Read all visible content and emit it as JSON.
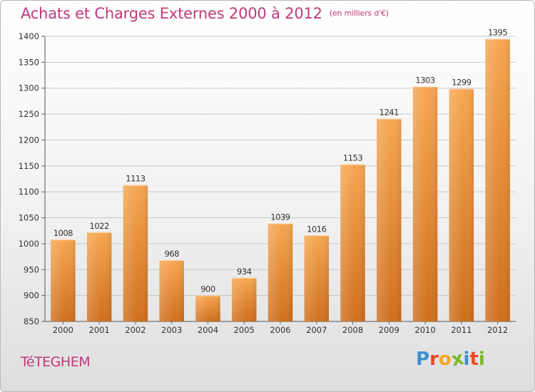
{
  "header": {
    "title": "Achats et Charges Externes 2000 à 2012",
    "subtitle": "(en milliers d'€)"
  },
  "footer": {
    "commune": "TéTEGHEM",
    "logo_letters": [
      "P",
      "r",
      "o",
      "x",
      "i",
      "t",
      "i"
    ],
    "logo_colors": [
      "#3f8fd2",
      "#e44b2b",
      "#f5a623",
      "#7ab929",
      "#3f8fd2",
      "#e44b2b",
      "#7ab929"
    ]
  },
  "colors": {
    "bar_top": "#f6a651",
    "bar_bottom": "#cf6f1d",
    "grid": "#c8c8c8",
    "axis_text": "#333333",
    "title": "#bf3a7a"
  },
  "chart_data": {
    "type": "bar",
    "title": "Achats et Charges Externes 2000 à 2012",
    "subtitle": "(en milliers d'€)",
    "categories": [
      "2000",
      "2001",
      "2002",
      "2003",
      "2004",
      "2005",
      "2006",
      "2007",
      "2008",
      "2009",
      "2010",
      "2011",
      "2012"
    ],
    "values": [
      1008,
      1022,
      1113,
      968,
      900,
      934,
      1039,
      1016,
      1153,
      1241,
      1303,
      1299,
      1395
    ],
    "ylim": [
      850,
      1400
    ],
    "yticks": [
      850,
      900,
      950,
      1000,
      1050,
      1100,
      1150,
      1200,
      1250,
      1300,
      1350,
      1400
    ],
    "grid": true,
    "legend": "none"
  }
}
